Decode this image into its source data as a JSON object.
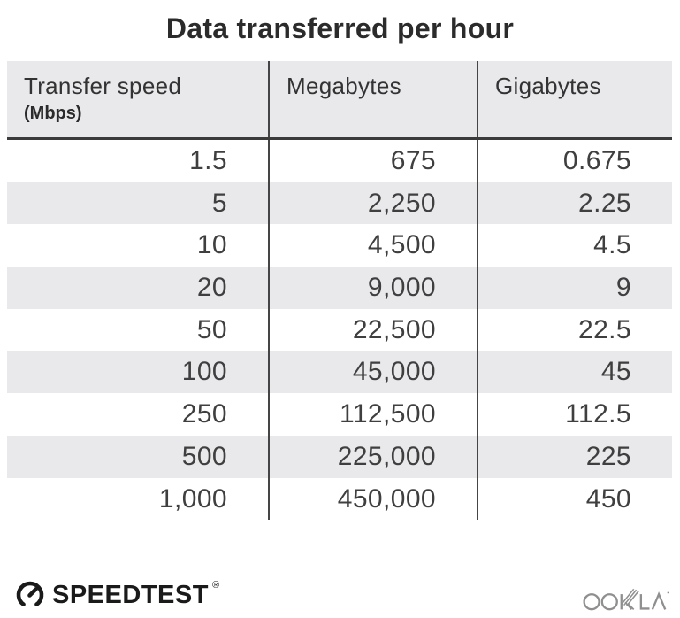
{
  "title": "Data transferred per hour",
  "table": {
    "columns": [
      {
        "label": "Transfer speed",
        "sublabel": "(Mbps)"
      },
      {
        "label": "Megabytes",
        "sublabel": ""
      },
      {
        "label": "Gigabytes",
        "sublabel": ""
      }
    ],
    "rows": [
      [
        "1.5",
        "675",
        "0.675"
      ],
      [
        "5",
        "2,250",
        "2.25"
      ],
      [
        "10",
        "4,500",
        "4.5"
      ],
      [
        "20",
        "9,000",
        "9"
      ],
      [
        "50",
        "22,500",
        "22.5"
      ],
      [
        "100",
        "45,000",
        "45"
      ],
      [
        "250",
        "112,500",
        "112.5"
      ],
      [
        "500",
        "225,000",
        "225"
      ],
      [
        "1,000",
        "450,000",
        "450"
      ]
    ]
  },
  "footer": {
    "speedtest_label": "SPEEDTEST",
    "speedtest_reg_mark": "®",
    "ookla_label": "OOKLA",
    "icons": {
      "gauge": "speedtest-gauge-icon",
      "wordmark": "ookla-wordmark-icon"
    }
  },
  "colors": {
    "background": "#ffffff",
    "title_text": "#2b2b2b",
    "header_bg": "#e9e8ea",
    "row_stripe": "#e9e8ea",
    "number_text": "#3f3f3f",
    "divider": "#454545",
    "header_border": "#3b3b3b",
    "logo_black": "#1a1a1a",
    "ookla_gray": "#8f8f8f"
  },
  "chart_data": {
    "type": "table",
    "title": "Data transferred per hour",
    "categories": [
      "Transfer speed (Mbps)",
      "Megabytes",
      "Gigabytes"
    ],
    "series": [
      {
        "name": "Transfer speed (Mbps)",
        "values": [
          1.5,
          5,
          10,
          20,
          50,
          100,
          250,
          500,
          1000
        ]
      },
      {
        "name": "Megabytes",
        "values": [
          675,
          2250,
          4500,
          9000,
          22500,
          45000,
          112500,
          225000,
          450000
        ]
      },
      {
        "name": "Gigabytes",
        "values": [
          0.675,
          2.25,
          4.5,
          9,
          22.5,
          45,
          112.5,
          225,
          450
        ]
      }
    ],
    "layout": {
      "zebra_striping": true,
      "header_row": true,
      "grid": "column-dividers-only"
    }
  }
}
